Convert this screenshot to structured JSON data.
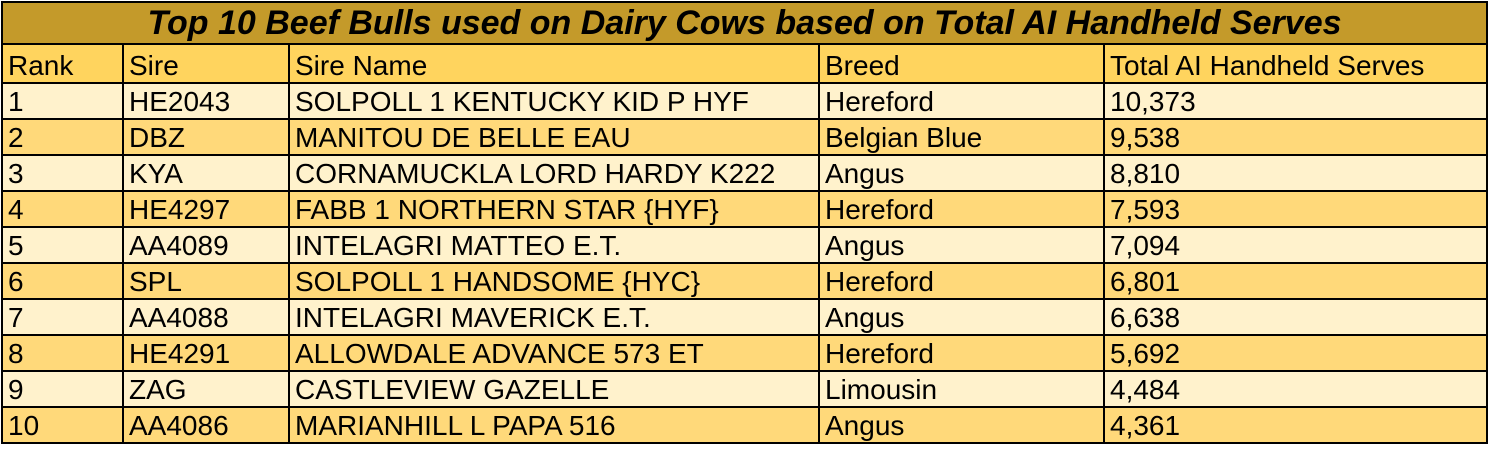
{
  "title": "Top 10 Beef Bulls used on Dairy Cows based on Total AI Handheld Serves",
  "columns": [
    "Rank",
    "Sire",
    "Sire Name",
    "Breed",
    "Total AI Handheld Serves"
  ],
  "rows": [
    {
      "rank": "1",
      "sire": "HE2043",
      "name": "SOLPOLL 1 KENTUCKY KID P HYF",
      "breed": "Hereford",
      "serves": "10,373"
    },
    {
      "rank": "2",
      "sire": "DBZ",
      "name": "MANITOU DE BELLE EAU",
      "breed": "Belgian Blue",
      "serves": "9,538"
    },
    {
      "rank": "3",
      "sire": "KYA",
      "name": "CORNAMUCKLA LORD HARDY K222",
      "breed": "Angus",
      "serves": "8,810"
    },
    {
      "rank": "4",
      "sire": "HE4297",
      "name": "FABB 1 NORTHERN STAR {HYF}",
      "breed": "Hereford",
      "serves": "7,593"
    },
    {
      "rank": "5",
      "sire": "AA4089",
      "name": "INTELAGRI MATTEO E.T.",
      "breed": "Angus",
      "serves": "7,094"
    },
    {
      "rank": "6",
      "sire": "SPL",
      "name": "SOLPOLL 1 HANDSOME {HYC}",
      "breed": "Hereford",
      "serves": "6,801"
    },
    {
      "rank": "7",
      "sire": "AA4088",
      "name": "INTELAGRI MAVERICK E.T.",
      "breed": "Angus",
      "serves": "6,638"
    },
    {
      "rank": "8",
      "sire": "HE4291",
      "name": "ALLOWDALE ADVANCE 573 ET",
      "breed": "Hereford",
      "serves": "5,692"
    },
    {
      "rank": "9",
      "sire": "ZAG",
      "name": "CASTLEVIEW GAZELLE",
      "breed": "Limousin",
      "serves": "4,484"
    },
    {
      "rank": "10",
      "sire": "AA4086",
      "name": "MARIANHILL L PAPA 516",
      "breed": "Angus",
      "serves": "4,361"
    }
  ],
  "colors": {
    "title_bg": "#c49a2a",
    "header_bg": "#ffd45e",
    "row_light": "#fff2cc",
    "row_dark": "#ffd97a",
    "border": "#000000"
  }
}
